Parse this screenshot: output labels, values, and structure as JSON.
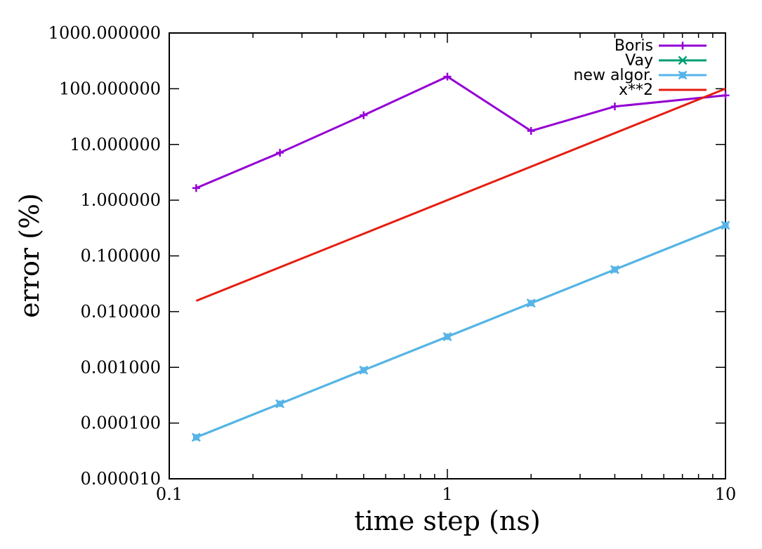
{
  "chart_data": {
    "type": "line",
    "xlabel": "time step (ns)",
    "ylabel": "error (%)",
    "xscale": "log",
    "yscale": "log",
    "xlim": [
      0.1,
      10
    ],
    "ylim": [
      1e-05,
      1000
    ],
    "x_ticks": [
      {
        "value": 0.1,
        "label": "0.1"
      },
      {
        "value": 1,
        "label": "1"
      },
      {
        "value": 10,
        "label": "10"
      }
    ],
    "y_ticks": [
      {
        "value": 1e-05,
        "label": "0.000010"
      },
      {
        "value": 0.0001,
        "label": "0.000100"
      },
      {
        "value": 0.001,
        "label": "0.001000"
      },
      {
        "value": 0.01,
        "label": "0.010000"
      },
      {
        "value": 0.1,
        "label": "0.100000"
      },
      {
        "value": 1,
        "label": "1.000000"
      },
      {
        "value": 10,
        "label": "10.000000"
      },
      {
        "value": 100,
        "label": "100.000000"
      },
      {
        "value": 1000,
        "label": "1000.000000"
      }
    ],
    "legend_position": "top-right",
    "grid": false,
    "series": [
      {
        "name": "Boris",
        "color": "#9400d3",
        "marker": "plus",
        "x": [
          0.125,
          0.25,
          0.5,
          1,
          2,
          4,
          10
        ],
        "y": [
          1.65,
          7.1,
          33.5,
          165,
          17.5,
          48,
          76
        ]
      },
      {
        "name": "Vay",
        "color": "#009e73",
        "marker": "cross",
        "x": [
          0.125,
          0.25,
          0.5,
          1,
          2,
          4,
          10
        ],
        "y": [
          5.55e-05,
          0.000222,
          0.00089,
          0.00355,
          0.0142,
          0.0568,
          0.355
        ]
      },
      {
        "name": "new algor.",
        "color": "#56b4e9",
        "marker": "box-cross",
        "x": [
          0.125,
          0.25,
          0.5,
          1,
          2,
          4,
          10
        ],
        "y": [
          5.55e-05,
          0.000222,
          0.00089,
          0.00355,
          0.0142,
          0.0568,
          0.355
        ]
      },
      {
        "name": "x**2",
        "color": "#e51e10",
        "marker": "none",
        "x": [
          0.125,
          10
        ],
        "y": [
          0.015625,
          100
        ]
      }
    ]
  }
}
